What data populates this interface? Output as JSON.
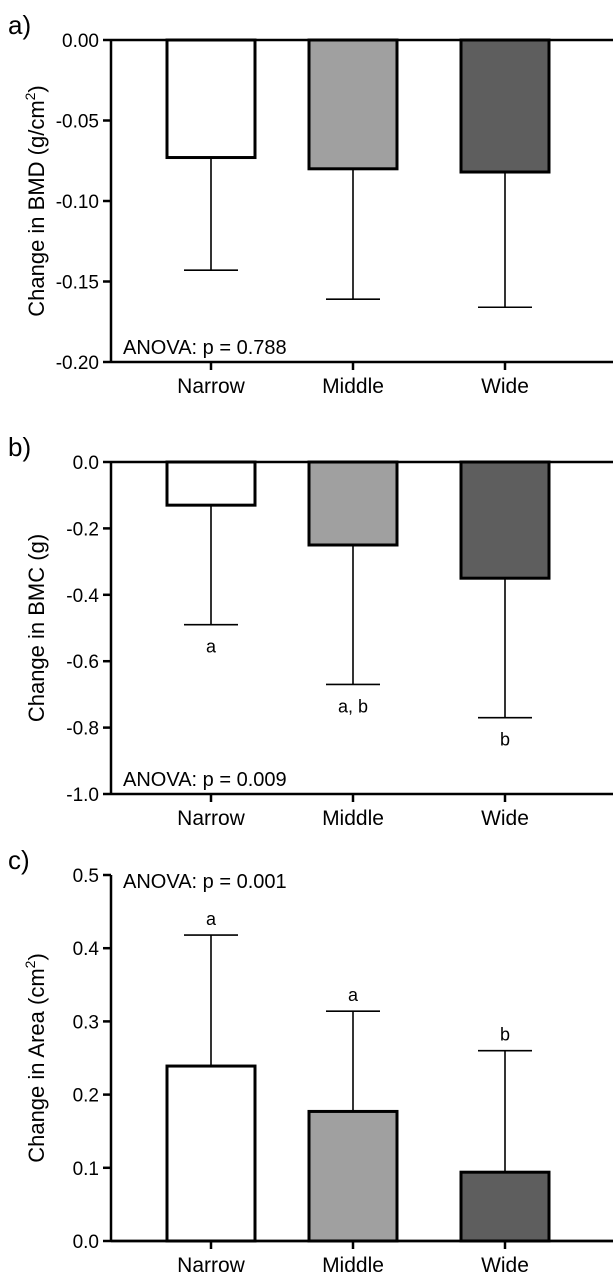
{
  "colors": {
    "narrow": "#ffffff",
    "middle": "#a0a0a0",
    "wide": "#5e5e5e",
    "stroke": "#000000"
  },
  "chart_data": [
    {
      "type": "bar",
      "panel_label": "a)",
      "categories": [
        "Narrow",
        "Middle",
        "Wide"
      ],
      "values": [
        -0.073,
        -0.08,
        -0.082
      ],
      "error": [
        0.07,
        0.081,
        0.084
      ],
      "error_direction": "down",
      "ylabel_main": "Change in BMD (g/cm",
      "ylabel_sup": "2",
      "ylabel_end": ")",
      "ylim": [
        -0.2,
        0.0
      ],
      "yticks": [
        0.0,
        -0.05,
        -0.1,
        -0.15,
        -0.2
      ],
      "ytick_labels": [
        "0.00",
        "-0.05",
        "-0.10",
        "-0.15",
        "-0.20"
      ],
      "annotation": "ANOVA: p = 0.788",
      "sig_letters": [
        "",
        "",
        ""
      ]
    },
    {
      "type": "bar",
      "panel_label": "b)",
      "categories": [
        "Narrow",
        "Middle",
        "Wide"
      ],
      "values": [
        -0.13,
        -0.25,
        -0.35
      ],
      "error": [
        0.36,
        0.42,
        0.42
      ],
      "error_direction": "down",
      "ylabel_main": "Change in BMC (g)",
      "ylabel_sup": "",
      "ylabel_end": "",
      "ylim": [
        -1.0,
        0.0
      ],
      "yticks": [
        0.0,
        -0.2,
        -0.4,
        -0.6,
        -0.8,
        -1.0
      ],
      "ytick_labels": [
        "0.0",
        "-0.2",
        "-0.4",
        "-0.6",
        "-0.8",
        "-1.0"
      ],
      "annotation": "ANOVA: p = 0.009",
      "sig_letters": [
        "a",
        "a, b",
        "b"
      ]
    },
    {
      "type": "bar",
      "panel_label": "c)",
      "categories": [
        "Narrow",
        "Middle",
        "Wide"
      ],
      "values": [
        0.239,
        0.177,
        0.094
      ],
      "error": [
        0.179,
        0.137,
        0.166
      ],
      "error_direction": "up",
      "ylabel_main": "Change in Area (cm",
      "ylabel_sup": "2",
      "ylabel_end": ")",
      "ylim": [
        0.0,
        0.5
      ],
      "yticks": [
        0.0,
        0.1,
        0.2,
        0.3,
        0.4,
        0.5
      ],
      "ytick_labels": [
        "0.0",
        "0.1",
        "0.2",
        "0.3",
        "0.4",
        "0.5"
      ],
      "annotation": "ANOVA: p = 0.001",
      "sig_letters": [
        "a",
        "a",
        "b"
      ]
    }
  ]
}
